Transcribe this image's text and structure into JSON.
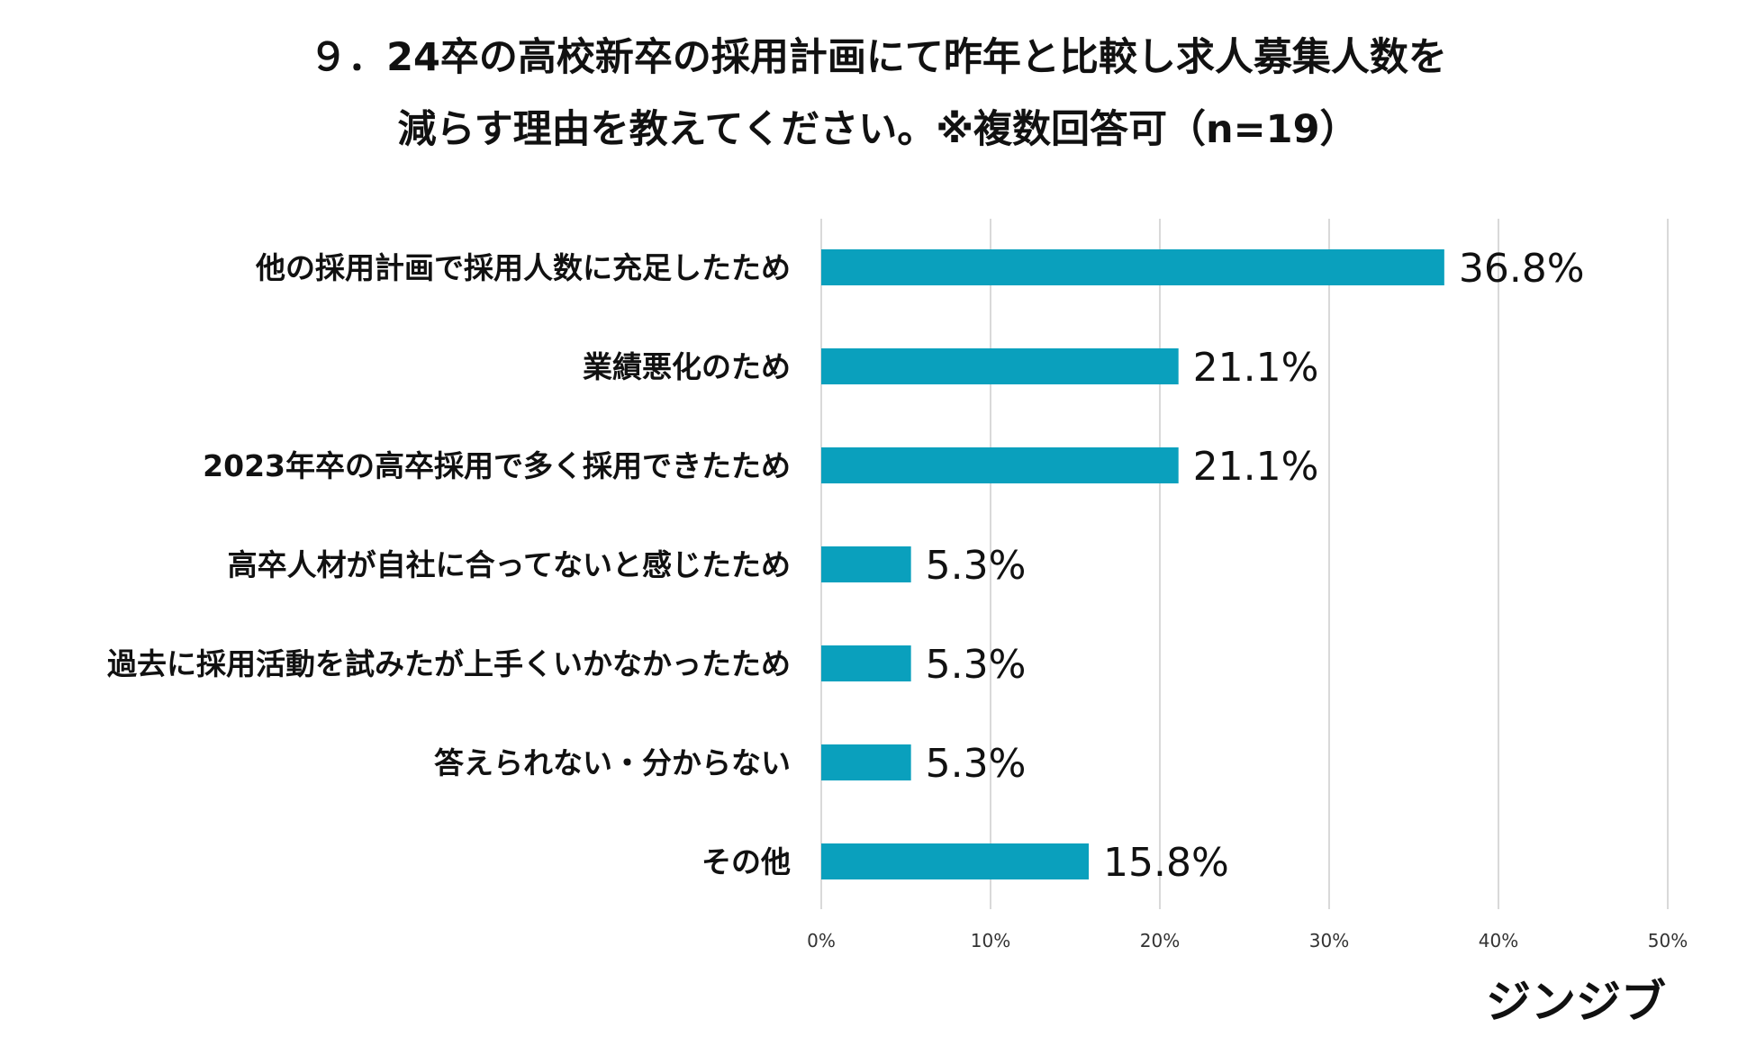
{
  "title": {
    "line1": "９．24卒の高校新卒の採用計画にて昨年と比較し求人募集人数を",
    "line2": "減らす理由を教えてください。※複数回答可（n=19）"
  },
  "brand": {
    "name": "ジンジブ",
    "color": "#111111"
  },
  "colors": {
    "bar": "#0aa0bd",
    "grid": "#d9d9d9"
  },
  "chart_data": {
    "type": "bar",
    "orientation": "horizontal",
    "title": "９．24卒の高校新卒の採用計画にて昨年と比較し求人募集人数を減らす理由を教えてください。※複数回答可（n=19）",
    "categories": [
      "他の採用計画で採用人数に充足したため",
      "業績悪化のため",
      "2023年卒の高卒採用で多く採用できたため",
      "高卒人材が自社に合ってないと感じたため",
      "過去に採用活動を試みたが上手くいかなかったため",
      "答えられない・分からない",
      "その他"
    ],
    "values": [
      36.8,
      21.1,
      21.1,
      5.3,
      5.3,
      5.3,
      15.8
    ],
    "value_labels": [
      "36.8%",
      "21.1%",
      "21.1%",
      "5.3%",
      "5.3%",
      "5.3%",
      "15.8%"
    ],
    "xlim": [
      0,
      50
    ],
    "ticks": [
      0,
      10,
      20,
      30,
      40,
      50
    ],
    "tick_labels": [
      "0%",
      "10%",
      "20%",
      "30%",
      "40%",
      "50%"
    ],
    "xlabel": "",
    "ylabel": "",
    "grid": true
  }
}
